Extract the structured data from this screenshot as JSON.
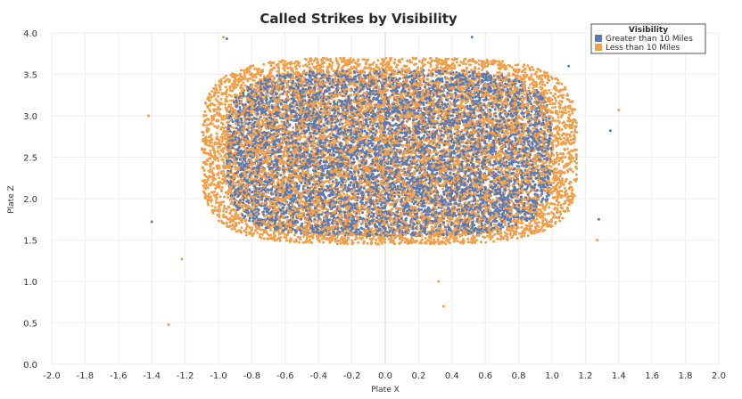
{
  "chart_data": {
    "type": "scatter",
    "title": "Called Strikes by Visibility",
    "xlabel": "Plate X",
    "ylabel": "Plate Z",
    "xlim": [
      -2.0,
      2.0
    ],
    "ylim": [
      0.0,
      4.0
    ],
    "x_ticks": [
      "-2.0",
      "-1.8",
      "-1.6",
      "-1.4",
      "-1.2",
      "-1.0",
      "-0.8",
      "-0.6",
      "-0.4",
      "-0.2",
      "0.0",
      "0.2",
      "0.4",
      "0.6",
      "0.8",
      "1.0",
      "1.2",
      "1.4",
      "1.6",
      "1.8",
      "2.0"
    ],
    "y_ticks": [
      "0.0",
      "0.5",
      "1.0",
      "1.5",
      "2.0",
      "2.5",
      "3.0",
      "3.5",
      "4.0"
    ],
    "grid": true,
    "legend": {
      "title": "Visibility",
      "position": "top-right"
    },
    "series": [
      {
        "name": "Greater than 10 Miles",
        "color": "#5b7ab3",
        "distribution": {
          "x_range": [
            -0.95,
            1.0
          ],
          "z_range": [
            1.55,
            3.55
          ],
          "note_points_estimated": true
        },
        "outliers": [
          [
            -1.4,
            1.72
          ],
          [
            1.35,
            2.82
          ],
          [
            1.1,
            3.6
          ],
          [
            0.52,
            3.95
          ],
          [
            -0.95,
            3.93
          ],
          [
            1.28,
            1.75
          ]
        ]
      },
      {
        "name": "Less than 10 Miles",
        "color": "#f0a04b",
        "distribution": {
          "x_range": [
            -1.1,
            1.15
          ],
          "z_range": [
            1.45,
            3.7
          ],
          "note_points_estimated": true
        },
        "outliers": [
          [
            -1.42,
            3.0
          ],
          [
            -1.3,
            0.48
          ],
          [
            0.35,
            0.7
          ],
          [
            0.32,
            1.0
          ],
          [
            1.4,
            3.07
          ],
          [
            -1.22,
            1.27
          ],
          [
            1.27,
            1.5
          ],
          [
            -0.97,
            3.95
          ]
        ]
      }
    ]
  }
}
